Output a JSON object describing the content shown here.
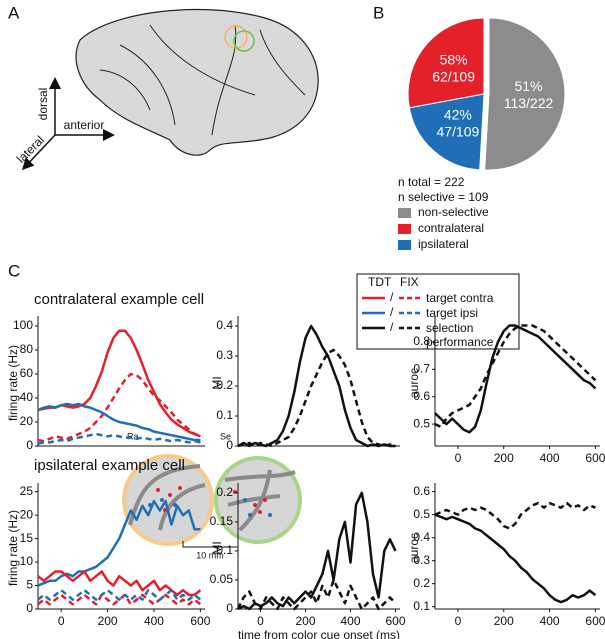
{
  "figure": {
    "panels": [
      "A",
      "B",
      "C"
    ],
    "directions": {
      "dorsal": "dorsal",
      "anterior": "anterior",
      "lateral": "lateral"
    },
    "areas": [
      "Ra",
      "Se"
    ],
    "scale": "10 mm",
    "legend": {
      "columns": [
        "TDT",
        "FIX"
      ],
      "separator": "/",
      "rows": [
        "target contra",
        "target ipsi",
        "selection performance"
      ],
      "colors": [
        "#e4202a",
        "#1f6fb8",
        "#111111"
      ]
    }
  },
  "chart_data": [
    {
      "type": "pie",
      "categories": [
        "non-selective",
        "contralateral",
        "ipsilateral"
      ],
      "values": [
        113,
        62,
        47
      ],
      "value_labels": [
        "113/222",
        "62/109",
        "47/109"
      ],
      "percent_labels": [
        "51%",
        "58%",
        "42%"
      ],
      "colors": [
        "#8c8c8e",
        "#e4202a",
        "#1f6fb8"
      ],
      "notes": [
        "n total = 222",
        "n selective = 109"
      ]
    },
    {
      "type": "line",
      "title": "contralateral example cell",
      "ylabel": "firing rate (Hz)",
      "x": [
        -100,
        -75,
        -50,
        -25,
        0,
        25,
        50,
        75,
        100,
        125,
        150,
        175,
        200,
        225,
        250,
        275,
        300,
        325,
        350,
        375,
        400,
        425,
        450,
        475,
        500,
        525,
        550,
        575,
        600
      ],
      "xlim": [
        -100,
        620
      ],
      "ylim": [
        0,
        105
      ],
      "yticks": [
        0,
        20,
        40,
        60,
        80,
        100
      ],
      "series": [
        {
          "color": "#e4202a",
          "dash": false,
          "values": [
            30,
            31,
            32,
            32,
            34,
            33,
            32,
            33,
            35,
            40,
            50,
            62,
            78,
            90,
            96,
            96,
            90,
            80,
            68,
            55,
            45,
            35,
            28,
            22,
            18,
            15,
            12,
            10,
            8
          ]
        },
        {
          "color": "#e4202a",
          "dash": true,
          "values": [
            5,
            4,
            6,
            8,
            7,
            6,
            8,
            10,
            12,
            15,
            20,
            25,
            32,
            40,
            48,
            55,
            60,
            59,
            55,
            48,
            42,
            38,
            33,
            28,
            22,
            18,
            14,
            10,
            8
          ]
        },
        {
          "color": "#1f6fb8",
          "dash": false,
          "values": [
            30,
            32,
            33,
            32,
            34,
            35,
            34,
            35,
            33,
            32,
            30,
            28,
            25,
            22,
            20,
            19,
            18,
            17,
            15,
            14,
            12,
            11,
            10,
            9,
            8,
            7,
            6,
            5,
            5
          ]
        },
        {
          "color": "#1f6fb8",
          "dash": true,
          "values": [
            2,
            3,
            3,
            4,
            5,
            4,
            6,
            7,
            8,
            9,
            10,
            9,
            8,
            9,
            8,
            7,
            7,
            6,
            7,
            6,
            5,
            6,
            5,
            4,
            5,
            4,
            3,
            4,
            3
          ]
        }
      ]
    },
    {
      "type": "line",
      "ylabel": "MI",
      "x": [
        -100,
        -75,
        -50,
        -25,
        0,
        25,
        50,
        75,
        100,
        125,
        150,
        175,
        200,
        225,
        250,
        275,
        300,
        325,
        350,
        375,
        400,
        425,
        450,
        475,
        500,
        525,
        550,
        575,
        600
      ],
      "xlim": [
        -100,
        620
      ],
      "ylim": [
        0,
        0.42
      ],
      "yticks": [
        0,
        0.1,
        0.2,
        0.3,
        0.4
      ],
      "series": [
        {
          "color": "#111111",
          "dash": false,
          "values": [
            0,
            0.01,
            0,
            0.01,
            0.005,
            0,
            0.01,
            0.02,
            0.05,
            0.1,
            0.18,
            0.28,
            0.36,
            0.4,
            0.37,
            0.33,
            0.3,
            0.25,
            0.2,
            0.12,
            0.06,
            0.02,
            0.01,
            0,
            0.005,
            0,
            0.005,
            0,
            0
          ]
        },
        {
          "color": "#111111",
          "dash": true,
          "values": [
            0,
            0.005,
            0.01,
            0,
            0.01,
            0.005,
            0,
            0.01,
            0.02,
            0.03,
            0.06,
            0.1,
            0.15,
            0.2,
            0.24,
            0.28,
            0.31,
            0.32,
            0.3,
            0.27,
            0.22,
            0.15,
            0.08,
            0.03,
            0.01,
            0.005,
            0,
            0.005,
            0
          ]
        }
      ]
    },
    {
      "type": "line",
      "ylabel": "auroc",
      "x": [
        -100,
        -75,
        -50,
        -25,
        0,
        25,
        50,
        75,
        100,
        125,
        150,
        175,
        200,
        225,
        250,
        275,
        300,
        325,
        350,
        375,
        400,
        425,
        450,
        475,
        500,
        525,
        550,
        575,
        600
      ],
      "xlim": [
        -100,
        620
      ],
      "xticks": [
        0,
        200,
        400,
        600
      ],
      "ylim": [
        0.42,
        0.88
      ],
      "yticks": [
        0.5,
        0.6,
        0.7,
        0.8
      ],
      "series": [
        {
          "color": "#111111",
          "dash": false,
          "values": [
            0.54,
            0.52,
            0.5,
            0.52,
            0.5,
            0.48,
            0.47,
            0.49,
            0.55,
            0.65,
            0.74,
            0.8,
            0.84,
            0.86,
            0.86,
            0.85,
            0.84,
            0.83,
            0.82,
            0.8,
            0.78,
            0.76,
            0.74,
            0.72,
            0.7,
            0.68,
            0.66,
            0.65,
            0.63
          ]
        },
        {
          "color": "#111111",
          "dash": true,
          "values": [
            0.5,
            0.49,
            0.52,
            0.54,
            0.55,
            0.56,
            0.57,
            0.6,
            0.63,
            0.68,
            0.72,
            0.76,
            0.8,
            0.83,
            0.85,
            0.86,
            0.86,
            0.86,
            0.85,
            0.84,
            0.82,
            0.8,
            0.78,
            0.76,
            0.74,
            0.72,
            0.7,
            0.68,
            0.66
          ]
        }
      ]
    },
    {
      "type": "line",
      "title": "ipsilateral example cell",
      "ylabel": "firing rate (Hz)",
      "x": [
        -100,
        -75,
        -50,
        -25,
        0,
        25,
        50,
        75,
        100,
        125,
        150,
        175,
        200,
        225,
        250,
        275,
        300,
        325,
        350,
        375,
        400,
        425,
        450,
        475,
        500,
        525,
        550,
        575,
        600
      ],
      "xlim": [
        -100,
        620
      ],
      "xticks": [
        0,
        200,
        400,
        600
      ],
      "ylim": [
        0,
        26
      ],
      "yticks": [
        0,
        5,
        10,
        15,
        20,
        25
      ],
      "series": [
        {
          "color": "#1f6fb8",
          "dash": false,
          "values": [
            5,
            5.5,
            6,
            6,
            7,
            7.5,
            7,
            8,
            8,
            8.5,
            9,
            10,
            11,
            13,
            15,
            18,
            21,
            19,
            22,
            20,
            23,
            21,
            23,
            18,
            22,
            20,
            21,
            17,
            17
          ]
        },
        {
          "color": "#e4202a",
          "dash": false,
          "values": [
            7,
            6,
            7,
            8,
            8,
            7,
            6,
            7,
            8,
            6,
            7,
            8,
            6,
            5,
            7,
            6,
            5,
            6,
            4,
            5,
            6,
            4,
            5,
            4,
            3,
            4,
            3,
            3,
            4
          ]
        },
        {
          "color": "#e4202a",
          "dash": true,
          "values": [
            1,
            2,
            1,
            2,
            3,
            2,
            1,
            2,
            3,
            2,
            1,
            3,
            2,
            1,
            2,
            3,
            1,
            2,
            3,
            2,
            1,
            2,
            3,
            2,
            1,
            2,
            1,
            2,
            1
          ]
        },
        {
          "color": "#1f6fb8",
          "dash": true,
          "values": [
            2,
            3,
            2,
            3,
            4,
            3,
            2,
            3,
            4,
            3,
            2,
            3,
            4,
            3,
            2,
            3,
            2,
            3,
            2,
            4,
            3,
            2,
            3,
            4,
            2,
            3,
            2,
            3,
            2
          ]
        }
      ]
    },
    {
      "type": "line",
      "ylabel": "MI",
      "xlabel": "time from color cue onset (ms)",
      "x": [
        -100,
        -75,
        -50,
        -25,
        0,
        25,
        50,
        75,
        100,
        125,
        150,
        175,
        200,
        225,
        250,
        275,
        300,
        325,
        350,
        375,
        400,
        425,
        450,
        475,
        500,
        525,
        550,
        575,
        600
      ],
      "xlim": [
        -100,
        620
      ],
      "xticks": [
        0,
        200,
        400,
        600
      ],
      "ylim": [
        0,
        0.21
      ],
      "yticks": [
        0,
        0.05,
        0.1,
        0.15,
        0.2
      ],
      "series": [
        {
          "color": "#111111",
          "dash": false,
          "values": [
            0,
            0.005,
            0,
            0.01,
            0.005,
            0.01,
            0.02,
            0.01,
            0.005,
            0.02,
            0.01,
            0.02,
            0.03,
            0.02,
            0.04,
            0.06,
            0.1,
            0.05,
            0.12,
            0.15,
            0.08,
            0.18,
            0.2,
            0.15,
            0.06,
            0.02,
            0.1,
            0.12,
            0.1
          ]
        },
        {
          "color": "#111111",
          "dash": true,
          "values": [
            0,
            0.02,
            0.03,
            0.01,
            0,
            0.02,
            0.01,
            0,
            0.02,
            0.01,
            0,
            0.01,
            0.02,
            0.03,
            0.01,
            0.04,
            0.02,
            0.05,
            0.03,
            0.01,
            0.04,
            0.02,
            0,
            0.01,
            0.02,
            0,
            0.01,
            0.02,
            0.01
          ]
        }
      ]
    },
    {
      "type": "line",
      "ylabel": "auroc",
      "x": [
        -100,
        -75,
        -50,
        -25,
        0,
        25,
        50,
        75,
        100,
        125,
        150,
        175,
        200,
        225,
        250,
        275,
        300,
        325,
        350,
        375,
        400,
        425,
        450,
        475,
        500,
        525,
        550,
        575,
        600
      ],
      "xlim": [
        -100,
        620
      ],
      "xticks": [
        0,
        200,
        400,
        600
      ],
      "ylim": [
        0.09,
        0.62
      ],
      "yticks": [
        0.1,
        0.2,
        0.3,
        0.4,
        0.5,
        0.6
      ],
      "series": [
        {
          "color": "#111111",
          "dash": false,
          "values": [
            0.5,
            0.49,
            0.48,
            0.49,
            0.48,
            0.47,
            0.46,
            0.44,
            0.43,
            0.41,
            0.39,
            0.37,
            0.35,
            0.32,
            0.3,
            0.27,
            0.25,
            0.22,
            0.2,
            0.18,
            0.15,
            0.13,
            0.12,
            0.13,
            0.15,
            0.14,
            0.15,
            0.17,
            0.15
          ]
        },
        {
          "color": "#111111",
          "dash": true,
          "values": [
            0.5,
            0.51,
            0.52,
            0.51,
            0.5,
            0.52,
            0.53,
            0.52,
            0.53,
            0.52,
            0.5,
            0.48,
            0.45,
            0.44,
            0.46,
            0.5,
            0.52,
            0.54,
            0.55,
            0.53,
            0.55,
            0.54,
            0.53,
            0.55,
            0.53,
            0.54,
            0.52,
            0.54,
            0.53
          ]
        }
      ]
    }
  ]
}
